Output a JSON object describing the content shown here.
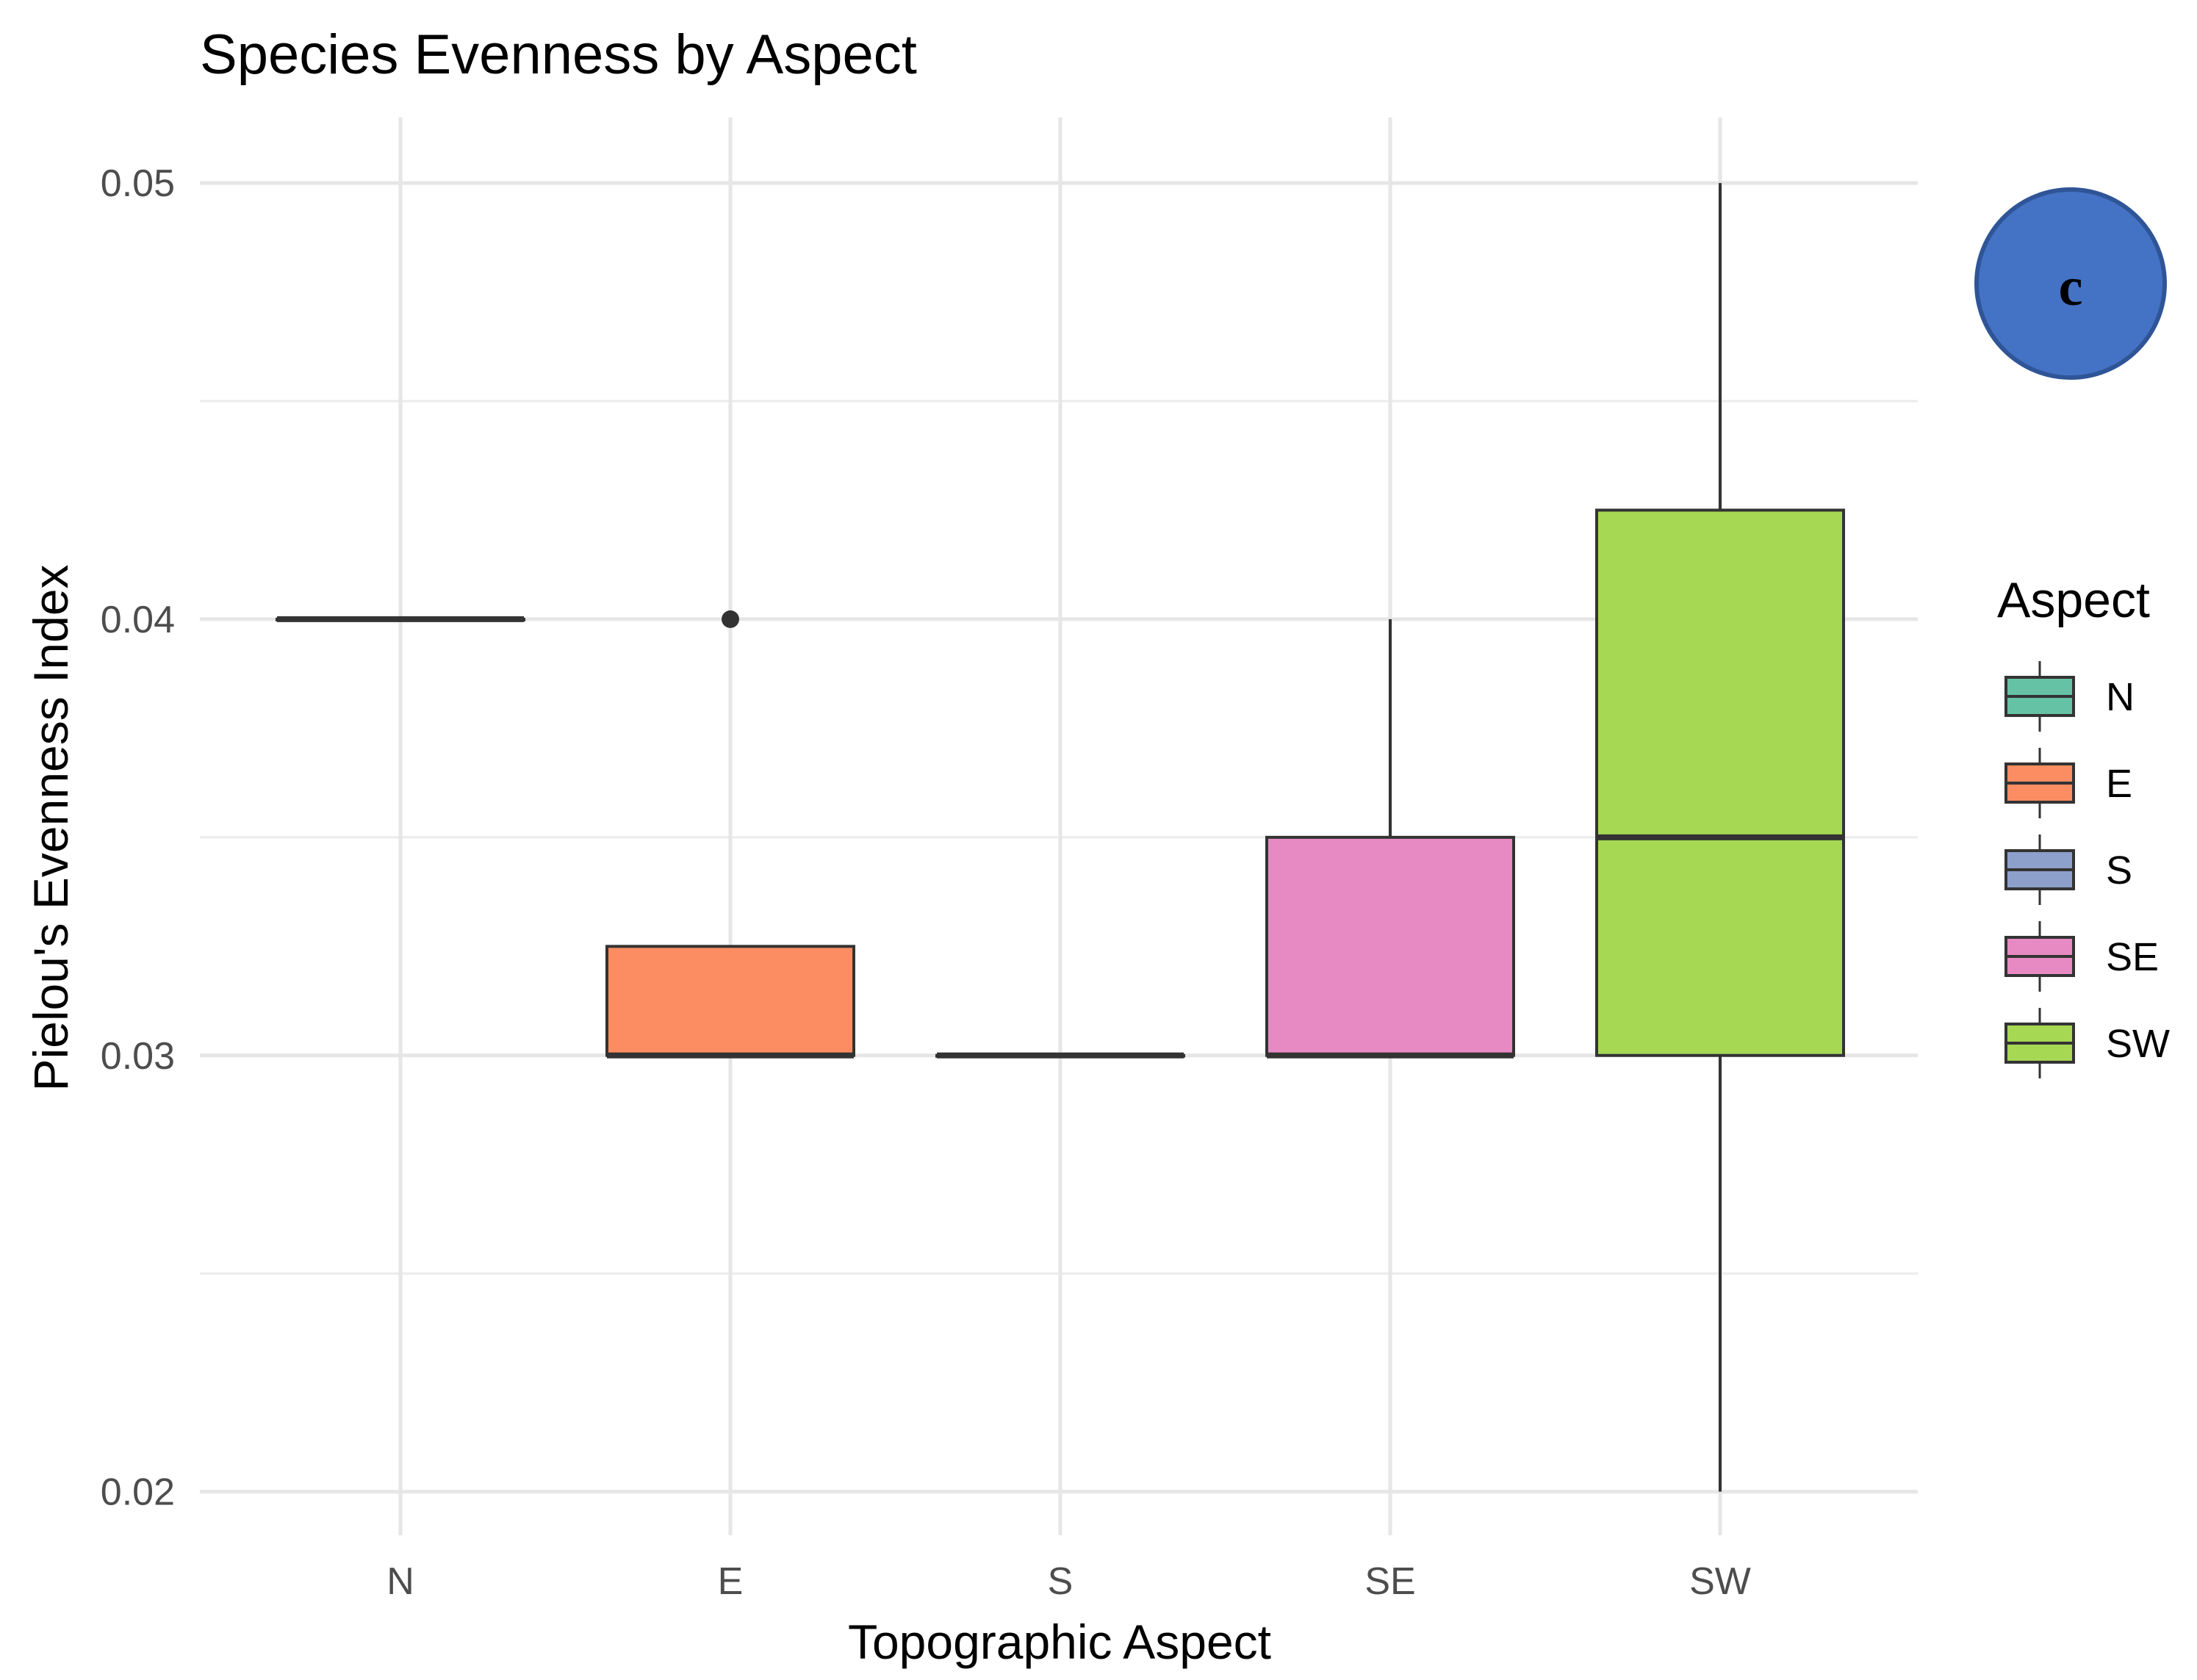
{
  "chart_data": {
    "type": "boxplot",
    "title": "Species Evenness by Aspect",
    "xlabel": "Topographic Aspect",
    "ylabel": "Pielou's Evenness Index",
    "ylim": [
      0.019,
      0.0515
    ],
    "y_ticks": [
      0.02,
      0.03,
      0.04,
      0.05
    ],
    "y_tick_labels": [
      "0.02",
      "0.03",
      "0.04",
      "0.05"
    ],
    "categories": [
      "N",
      "E",
      "S",
      "SE",
      "SW"
    ],
    "boxes": [
      {
        "category": "N",
        "whisker_low": 0.04,
        "q1": 0.04,
        "median": 0.04,
        "q3": 0.04,
        "whisker_high": 0.04,
        "outliers": [],
        "color": "#66C2A5"
      },
      {
        "category": "E",
        "whisker_low": 0.03,
        "q1": 0.03,
        "median": 0.03,
        "q3": 0.0325,
        "whisker_high": 0.0325,
        "outliers": [
          0.04
        ],
        "color": "#FC8D62"
      },
      {
        "category": "S",
        "whisker_low": 0.03,
        "q1": 0.03,
        "median": 0.03,
        "q3": 0.03,
        "whisker_high": 0.03,
        "outliers": [],
        "color": "#8DA0CB"
      },
      {
        "category": "SE",
        "whisker_low": 0.03,
        "q1": 0.03,
        "median": 0.03,
        "q3": 0.035,
        "whisker_high": 0.04,
        "outliers": [],
        "color": "#E78AC3"
      },
      {
        "category": "SW",
        "whisker_low": 0.02,
        "q1": 0.03,
        "median": 0.035,
        "q3": 0.0425,
        "whisker_high": 0.05,
        "outliers": [],
        "color": "#A6D854"
      }
    ],
    "legend": {
      "title": "Aspect",
      "position": "right",
      "entries": [
        {
          "label": "N",
          "color": "#66C2A5"
        },
        {
          "label": "E",
          "color": "#FC8D62"
        },
        {
          "label": "S",
          "color": "#8DA0CB"
        },
        {
          "label": "SE",
          "color": "#E78AC3"
        },
        {
          "label": "SW",
          "color": "#A6D854"
        }
      ]
    },
    "grid": true
  },
  "badge": {
    "label": "c",
    "color": "#4472C4"
  }
}
